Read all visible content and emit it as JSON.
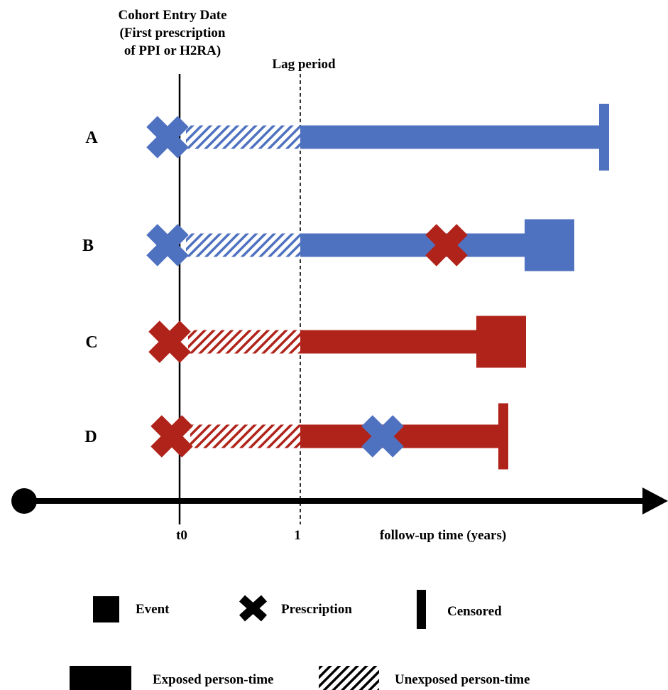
{
  "header": {
    "cohort_entry_lines": [
      "Cohort Entry Date",
      "(First prescription",
      "of PPI or H2RA)"
    ],
    "lag_period": "Lag period"
  },
  "axis": {
    "t0_label": "t0",
    "one_label": "1",
    "axis_label": "follow-up time (years)"
  },
  "colors": {
    "blue": "#4f72c0",
    "red": "#b0231a",
    "black": "#000000"
  },
  "rows": [
    {
      "label": "A",
      "color": "blue",
      "end": "censored",
      "mid_prescription": null
    },
    {
      "label": "B",
      "color": "blue",
      "end": "event",
      "mid_prescription": "red"
    },
    {
      "label": "C",
      "color": "red",
      "end": "event",
      "mid_prescription": null
    },
    {
      "label": "D",
      "color": "red",
      "end": "censored",
      "mid_prescription": "blue"
    }
  ],
  "legend": {
    "event": "Event",
    "prescription": "Prescription",
    "censored": "Censored",
    "exposed": "Exposed person-time",
    "unexposed": "Unexposed person-time"
  },
  "icons": {
    "event": "filled-square-icon",
    "prescription": "x-mark-icon",
    "censored": "vertical-bar-icon"
  }
}
